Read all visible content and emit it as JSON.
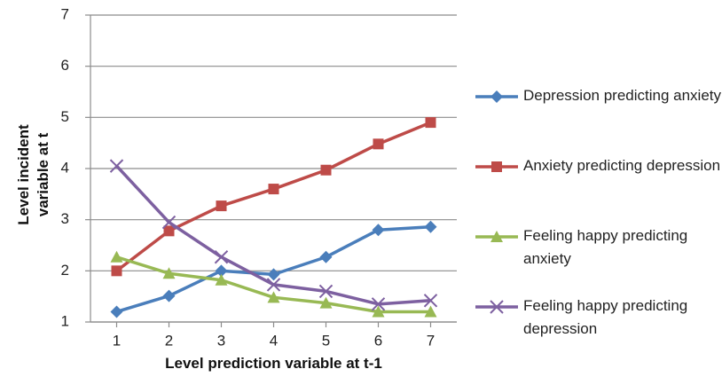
{
  "chart_data": {
    "type": "line",
    "xlabel": "Level prediction variable at t-1",
    "ylabel": "Level incident variable at t",
    "x": [
      1,
      2,
      3,
      4,
      5,
      6,
      7
    ],
    "xlim": [
      0.5,
      7.5
    ],
    "xticks": [
      1,
      2,
      3,
      4,
      5,
      6,
      7
    ],
    "ylim": [
      1,
      7
    ],
    "yticks": [
      1,
      2,
      3,
      4,
      5,
      6,
      7
    ],
    "grid": true,
    "legend": "right",
    "series": [
      {
        "name": "Depression predicting anxiety",
        "color": "#4a7ebb",
        "marker": "diamond",
        "values": [
          1.2,
          1.51,
          2.0,
          1.93,
          2.27,
          2.8,
          2.86
        ]
      },
      {
        "name": "Anxiety predicting depression",
        "color": "#be4b48",
        "marker": "square",
        "values": [
          2.0,
          2.78,
          3.27,
          3.6,
          3.97,
          4.48,
          4.9
        ]
      },
      {
        "name": "Feeling happy predicting anxiety",
        "color": "#98b954",
        "marker": "triangle",
        "values": [
          2.27,
          1.95,
          1.82,
          1.48,
          1.37,
          1.2,
          1.2
        ]
      },
      {
        "name": "Feeling happy predicting depression",
        "color": "#7d60a0",
        "marker": "x",
        "values": [
          4.05,
          2.95,
          2.27,
          1.73,
          1.6,
          1.35,
          1.42
        ]
      }
    ]
  }
}
